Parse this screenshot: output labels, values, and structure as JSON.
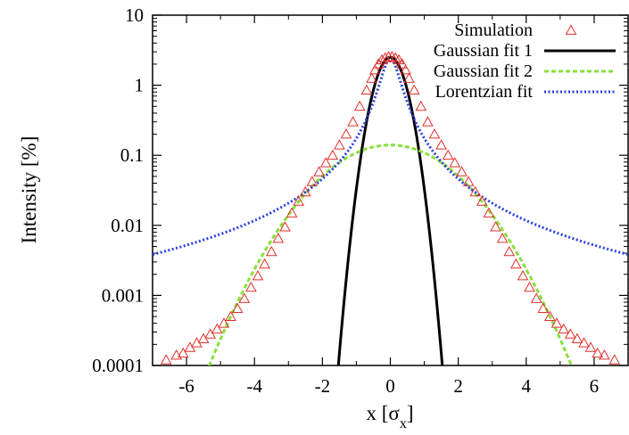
{
  "chart_data": {
    "type": "scatter",
    "title": "",
    "xlabel": "x [σ",
    "xlabel_sub": "x",
    "xlabel_close": "]",
    "ylabel": "Intensity [%]",
    "xlim": [
      -7,
      7
    ],
    "ylim": [
      0.0001,
      10
    ],
    "y_scale": "log",
    "grid": false,
    "legend_position": "top-right",
    "x_ticks": [
      -6,
      -4,
      -2,
      0,
      2,
      4,
      6
    ],
    "x_tick_labels": [
      "-6",
      "-4",
      "-2",
      "0",
      "2",
      "4",
      "6"
    ],
    "y_ticks": [
      0.0001,
      0.001,
      0.01,
      0.1,
      1,
      10
    ],
    "y_tick_labels": [
      "0.0001",
      "0.001",
      "0.01",
      "0.1",
      "1",
      "10"
    ],
    "series": [
      {
        "name": "Simulation",
        "kind": "markers",
        "marker": "triangle",
        "color": "#e0302c",
        "x": [
          -6.6,
          -6.3,
          -6.1,
          -5.9,
          -5.7,
          -5.5,
          -5.3,
          -5.1,
          -4.9,
          -4.7,
          -4.5,
          -4.3,
          -4.1,
          -3.9,
          -3.7,
          -3.5,
          -3.3,
          -3.1,
          -2.9,
          -2.7,
          -2.5,
          -2.3,
          -2.1,
          -1.9,
          -1.7,
          -1.5,
          -1.3,
          -1.1,
          -0.9,
          -0.7,
          -0.55,
          -0.45,
          -0.35,
          -0.25,
          -0.15,
          -0.05,
          0.05,
          0.15,
          0.25,
          0.35,
          0.45,
          0.55,
          0.7,
          0.9,
          1.1,
          1.3,
          1.5,
          1.7,
          1.9,
          2.1,
          2.3,
          2.5,
          2.7,
          2.9,
          3.1,
          3.3,
          3.5,
          3.7,
          3.9,
          4.1,
          4.3,
          4.5,
          4.7,
          4.9,
          5.1,
          5.3,
          5.5,
          5.7,
          5.9,
          6.1,
          6.3,
          6.6
        ],
        "y": [
          0.00012,
          0.00014,
          0.00015,
          0.00018,
          0.00021,
          0.00024,
          0.00028,
          0.00033,
          0.0004,
          0.0005,
          0.00065,
          0.0009,
          0.0013,
          0.0019,
          0.0028,
          0.0042,
          0.0065,
          0.0095,
          0.015,
          0.022,
          0.03,
          0.042,
          0.058,
          0.078,
          0.1,
          0.14,
          0.2,
          0.3,
          0.5,
          0.85,
          1.25,
          1.65,
          2.0,
          2.3,
          2.45,
          2.55,
          2.55,
          2.45,
          2.3,
          2.0,
          1.65,
          1.25,
          0.85,
          0.5,
          0.3,
          0.2,
          0.14,
          0.1,
          0.078,
          0.058,
          0.042,
          0.03,
          0.022,
          0.015,
          0.0095,
          0.0065,
          0.0042,
          0.0028,
          0.0019,
          0.0013,
          0.0009,
          0.00065,
          0.0005,
          0.0004,
          0.00033,
          0.00028,
          0.00024,
          0.00021,
          0.00018,
          0.00015,
          0.00014,
          0.00012
        ]
      },
      {
        "name": "Gaussian fit 1",
        "kind": "line",
        "style": "solid",
        "color": "#000000",
        "function": "gaussian",
        "amplitude": 2.5,
        "center": 0,
        "sigma": 0.34
      },
      {
        "name": "Gaussian fit 2",
        "kind": "line",
        "style": "dashed",
        "color": "#88e03a",
        "function": "gaussian",
        "amplitude": 0.14,
        "center": 0,
        "sigma": 1.4
      },
      {
        "name": "Lorentzian fit",
        "kind": "line",
        "style": "dotted",
        "color": "#2a3fe0",
        "function": "lorentzian",
        "amplitude": 2.4,
        "center": 0,
        "gamma": 0.28
      }
    ]
  }
}
